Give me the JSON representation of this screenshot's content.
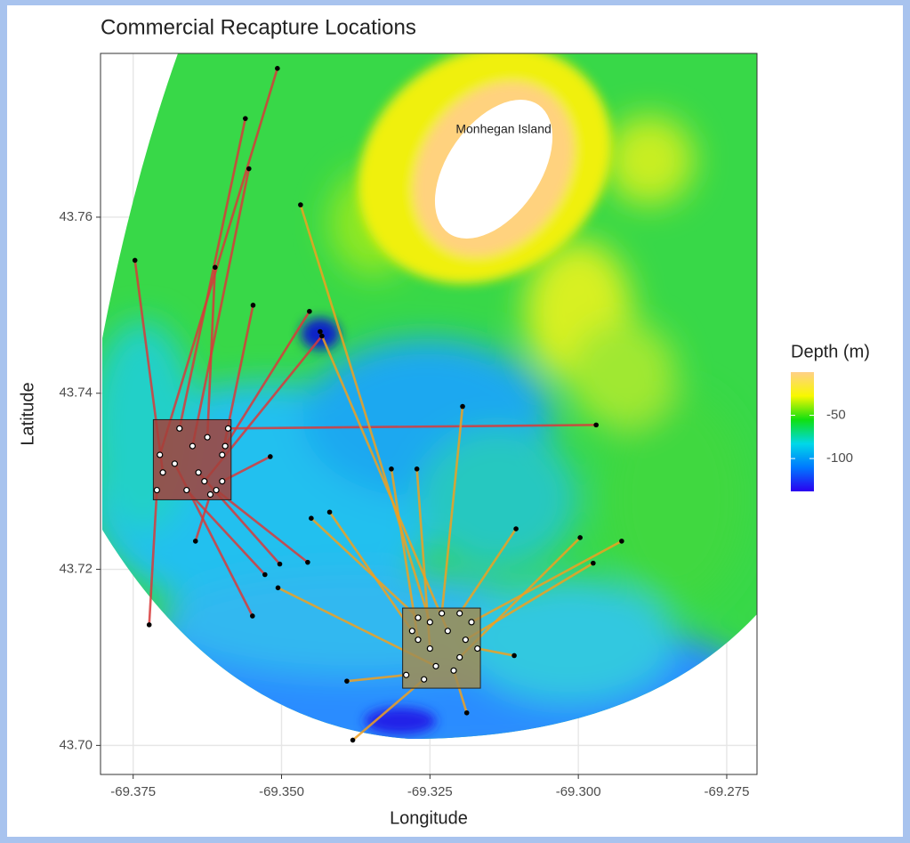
{
  "chart_data": {
    "type": "segments",
    "title": "Commercial Recapture Locations",
    "x_label": "Longitude",
    "y_label": "Latitude",
    "xlim": [
      -69.3805,
      -69.2699
    ],
    "ylim": [
      43.6967,
      43.7786
    ],
    "xticks": [
      -69.375,
      {
        "value": -69.35,
        "label": "-69.350"
      },
      -69.325,
      {
        "value": -69.3,
        "label": "-69.300"
      },
      -69.275
    ],
    "yticks": [
      {
        "value": 43.7,
        "label": "43.70"
      },
      43.72,
      43.74,
      43.76
    ],
    "grid": true,
    "annotations": [
      {
        "text": "Monhegan Island",
        "x": -69.3126,
        "y": 43.7699
      }
    ],
    "regions": [
      {
        "xlim": [
          -69.3716,
          -69.3585
        ],
        "ylim": [
          43.7279,
          43.737
        ],
        "fill": "#a3403a"
      },
      {
        "xlim": [
          -69.3296,
          -69.3165
        ],
        "ylim": [
          43.7065,
          43.7156
        ],
        "fill": "#a08c52"
      }
    ],
    "series": [
      {
        "color": "#d83a3a",
        "release_x": [
          -69.3705,
          -69.3672,
          -69.365,
          -69.37,
          -69.3625,
          -69.36,
          -69.3595,
          -69.359,
          -69.36,
          -69.361,
          -69.364,
          -69.366,
          -69.368,
          -69.371,
          -69.362,
          -69.363
        ],
        "release_y": [
          43.733,
          43.736,
          43.734,
          43.731,
          43.735,
          43.733,
          43.734,
          43.736,
          43.73,
          43.729,
          43.731,
          43.729,
          43.732,
          43.729,
          43.7285,
          43.73
        ],
        "recapture_x": [
          -69.3507,
          -69.3561,
          -69.3555,
          -69.3747,
          -69.3612,
          -69.3548,
          -69.3453,
          -69.297,
          -69.3519,
          -69.3456,
          -69.3503,
          -69.3528,
          -69.3549,
          -69.3723,
          -69.3645,
          -69.3432
        ],
        "recapture_y": [
          43.7769,
          43.7712,
          43.7655,
          43.7551,
          43.7543,
          43.75,
          43.7493,
          43.7364,
          43.7328,
          43.7208,
          43.7206,
          43.7194,
          43.7147,
          43.7137,
          43.7232,
          43.7465
        ]
      },
      {
        "color": "#f0a020",
        "release_x": [
          -69.325,
          -69.322,
          -69.323,
          -69.327,
          -69.318,
          -69.32,
          -69.319,
          -69.329,
          -69.326,
          -69.317,
          -69.328,
          -69.324,
          -69.32,
          -69.325,
          -69.327,
          -69.321
        ],
        "release_y": [
          43.714,
          43.713,
          43.715,
          43.712,
          43.714,
          43.71,
          43.712,
          43.708,
          43.7075,
          43.711,
          43.713,
          43.709,
          43.715,
          43.711,
          43.7145,
          43.7085
        ],
        "recapture_x": [
          -69.3468,
          -69.3435,
          -69.3195,
          -69.3315,
          -69.2927,
          -69.2997,
          -69.2975,
          -69.339,
          -69.338,
          -69.3108,
          -69.3419,
          -69.3506,
          -69.3105,
          -69.3272,
          -69.345,
          -69.3188
        ],
        "recapture_y": [
          43.7614,
          43.747,
          43.7385,
          43.7314,
          43.7232,
          43.7236,
          43.7207,
          43.7073,
          43.7006,
          43.7102,
          43.7265,
          43.7179,
          43.7246,
          43.7314,
          43.7258,
          43.7037
        ]
      }
    ],
    "colorbar": {
      "title": "Depth (m)",
      "lim": [
        -138,
        0
      ],
      "ticks": [
        -50,
        -100
      ],
      "colors": [
        "#2a00f0",
        "#0078ff",
        "#00d8e8",
        "#10e010",
        "#f8f800",
        "#ffd088"
      ]
    }
  }
}
